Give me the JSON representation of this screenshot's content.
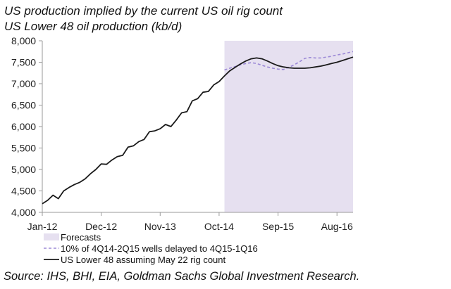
{
  "chart_data": {
    "type": "line",
    "title": "US production implied by the current US oil rig count",
    "subtitle": "US Lower 48 oil production (kb/d)",
    "xlabel": "",
    "ylabel": "",
    "ylim": [
      4000,
      8000
    ],
    "xlim": [
      0,
      58
    ],
    "x_unit": "months since Jan-12",
    "yticks": [
      4000,
      4500,
      5000,
      5500,
      6000,
      6500,
      7000,
      7500,
      8000
    ],
    "ytick_labels": [
      "4,000",
      "4,500",
      "5,000",
      "5,500",
      "6,000",
      "6,500",
      "7,000",
      "7,500",
      "8,000"
    ],
    "xticks": [
      0,
      11,
      22,
      33,
      44,
      55
    ],
    "xtick_labels": [
      "Jan-12",
      "Dec-12",
      "Nov-13",
      "Oct-14",
      "Sep-15",
      "Aug-16"
    ],
    "forecast_region": {
      "start": 34,
      "end": 58,
      "color": "#e6e0f0",
      "label": "Forecasts"
    },
    "series": [
      {
        "name": "10% of 4Q14-2Q15 wells delayed to 4Q15-1Q16",
        "style": "dashed",
        "color": "#9b88d6",
        "x": [
          34,
          35,
          36,
          37,
          38,
          39,
          40,
          41,
          42,
          43,
          44,
          45,
          46,
          47,
          48,
          49,
          50,
          51,
          52,
          53,
          54,
          55,
          56,
          57,
          58
        ],
        "y": [
          7320,
          7360,
          7400,
          7440,
          7470,
          7490,
          7470,
          7430,
          7390,
          7360,
          7340,
          7330,
          7380,
          7440,
          7510,
          7590,
          7610,
          7600,
          7600,
          7620,
          7640,
          7670,
          7690,
          7720,
          7750
        ]
      },
      {
        "name": "US Lower 48 assuming May 22 rig count",
        "style": "solid",
        "color": "#1a1a1a",
        "x": [
          0,
          1,
          2,
          3,
          4,
          5,
          6,
          7,
          8,
          9,
          10,
          11,
          12,
          13,
          14,
          15,
          16,
          17,
          18,
          19,
          20,
          21,
          22,
          23,
          24,
          25,
          26,
          27,
          28,
          29,
          30,
          31,
          32,
          33,
          34,
          35,
          36,
          37,
          38,
          39,
          40,
          41,
          42,
          43,
          44,
          45,
          46,
          47,
          48,
          49,
          50,
          51,
          52,
          53,
          54,
          55,
          56,
          57,
          58
        ],
        "y": [
          4200,
          4280,
          4400,
          4320,
          4500,
          4580,
          4650,
          4700,
          4780,
          4900,
          5000,
          5130,
          5120,
          5220,
          5300,
          5330,
          5520,
          5550,
          5650,
          5700,
          5880,
          5900,
          5950,
          6050,
          6000,
          6150,
          6320,
          6350,
          6600,
          6650,
          6800,
          6820,
          6970,
          7050,
          7180,
          7300,
          7380,
          7460,
          7530,
          7580,
          7600,
          7580,
          7530,
          7470,
          7420,
          7390,
          7370,
          7360,
          7360,
          7360,
          7370,
          7390,
          7410,
          7440,
          7470,
          7500,
          7540,
          7580,
          7620
        ]
      }
    ],
    "legend_position": "bottom-left",
    "source": "Source: IHS, BHI, EIA, Goldman Sachs Global Investment Research."
  },
  "colors": {
    "forecast_fill": "#e6e0f0",
    "dashed_line": "#9b88d6",
    "solid_line": "#1a1a1a",
    "axis": "#9a9a9a"
  }
}
